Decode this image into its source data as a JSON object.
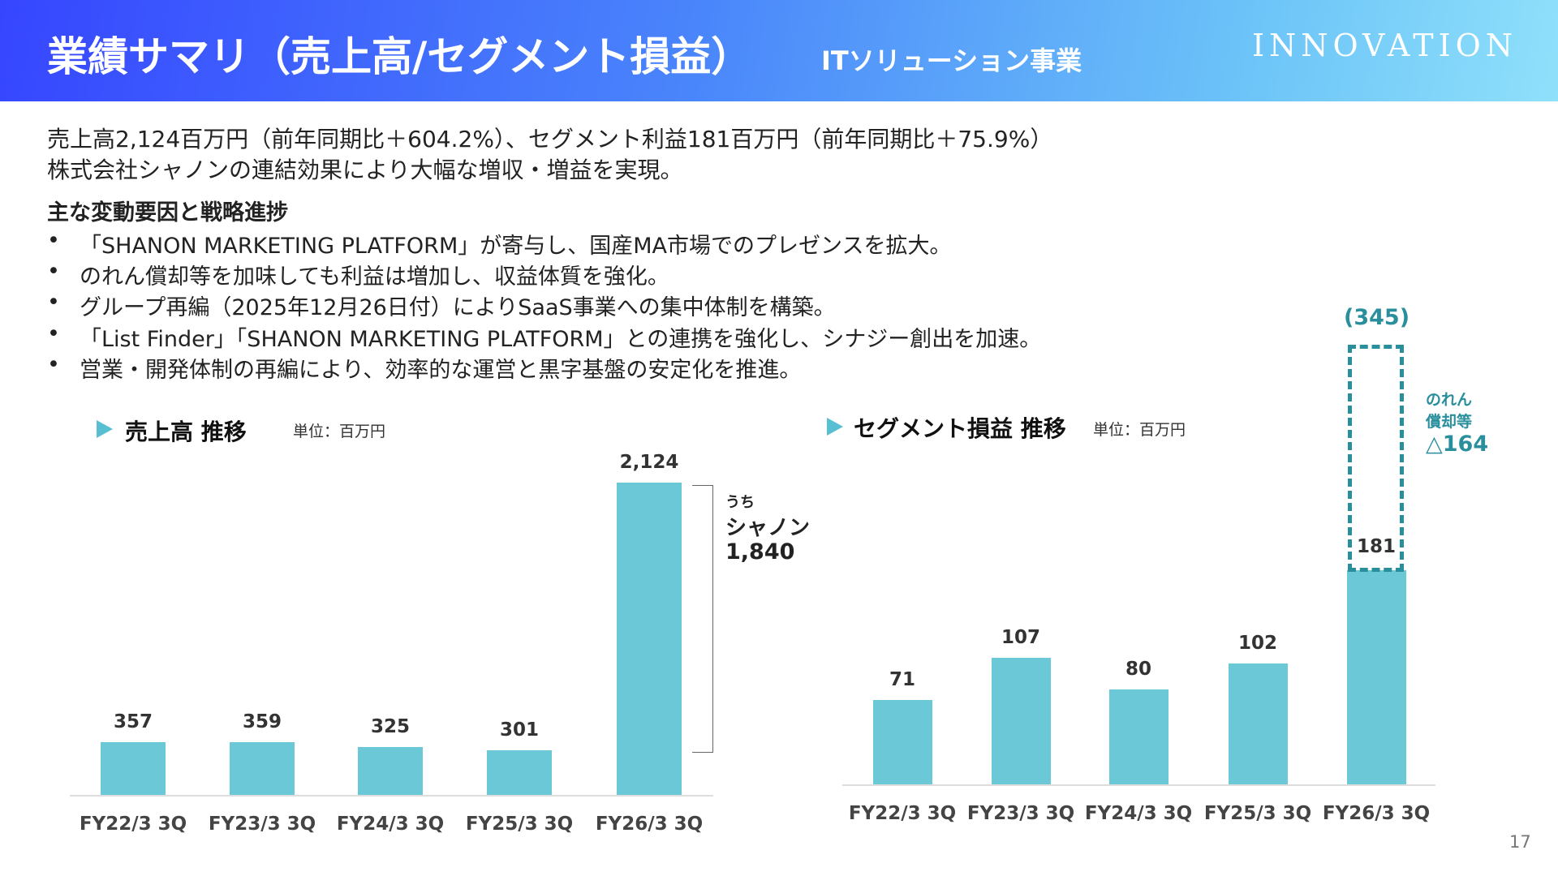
{
  "header": {
    "title": "業績サマリ（売上高/セグメント損益）",
    "subtitle": "ITソリューション事業",
    "logo": "INNOVATION"
  },
  "summary": {
    "line1": "売上高2,124百万円（前年同期比＋604.2%）、セグメント利益181百万円（前年同期比＋75.9%）",
    "line2": "株式会社シャノンの連結効果により大幅な増収・増益を実現。"
  },
  "factors": {
    "heading": "主な変動要因と戦略進捗",
    "bullet": "•",
    "items": [
      "「SHANON MARKETING PLATFORM」が寄与し、国産MA市場でのプレゼンスを拡大。",
      "のれん償却等を加味しても利益は増加し、収益体質を強化。",
      "グループ再編（2025年12月26日付）によりSaaS事業への集中体制を構築。",
      "「List Finder」「SHANON MARKETING PLATFORM」との連携を強化し、シナジー創出を加速。",
      "営業・開発体制の再編により、効率的な運営と黒字基盤の安定化を推進。"
    ]
  },
  "chart_data": [
    {
      "type": "bar",
      "title": "売上高 推移",
      "unit": "単位：百万円",
      "categories": [
        "FY22/3 3Q",
        "FY23/3 3Q",
        "FY24/3 3Q",
        "FY25/3 3Q",
        "FY26/3 3Q"
      ],
      "values": [
        357,
        359,
        325,
        301,
        2124
      ],
      "labels": [
        "357",
        "359",
        "325",
        "301",
        "2,124"
      ],
      "annotation": {
        "prefix": "うち",
        "name": "シャノン",
        "value": "1,840"
      },
      "color": "#6bc8d6"
    },
    {
      "type": "bar",
      "title": "セグメント損益 推移",
      "unit": "単位：百万円",
      "categories": [
        "FY22/3 3Q",
        "FY23/3 3Q",
        "FY24/3 3Q",
        "FY25/3 3Q",
        "FY26/3 3Q"
      ],
      "values": [
        71,
        107,
        80,
        102,
        181
      ],
      "labels": [
        "71",
        "107",
        "80",
        "102",
        "181"
      ],
      "pre_amortization": {
        "value": 345,
        "label": "(345)"
      },
      "annotation": {
        "line1": "のれん",
        "line2": "償却等",
        "value": "△164"
      },
      "color": "#6bc8d6",
      "accent": "#2a8f9c"
    }
  ],
  "page_number": "17"
}
